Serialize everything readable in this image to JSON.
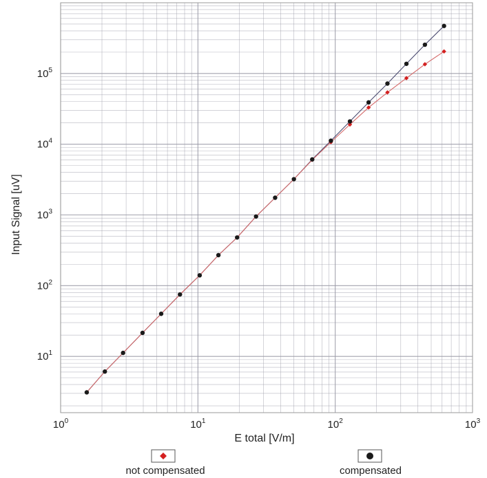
{
  "chart_data": {
    "type": "scatter",
    "xlabel": "E total [V/m]",
    "ylabel": "Input Signal [uV]",
    "xscale": "log",
    "yscale": "log",
    "xlim": [
      1,
      1000
    ],
    "ylim": [
      1.6,
      1000000
    ],
    "grid": true,
    "legend_position": "bottom",
    "x_ticks": [
      {
        "value": 1,
        "base": "10",
        "exp": "0"
      },
      {
        "value": 10,
        "base": "10",
        "exp": "1"
      },
      {
        "value": 100,
        "base": "10",
        "exp": "2"
      },
      {
        "value": 1000,
        "base": "10",
        "exp": "3"
      }
    ],
    "y_ticks": [
      {
        "value": 10,
        "base": "10",
        "exp": "1"
      },
      {
        "value": 100,
        "base": "10",
        "exp": "2"
      },
      {
        "value": 1000,
        "base": "10",
        "exp": "3"
      },
      {
        "value": 10000,
        "base": "10",
        "exp": "4"
      },
      {
        "value": 100000,
        "base": "10",
        "exp": "5"
      }
    ],
    "series": [
      {
        "name": "not compensated",
        "marker": "diamond",
        "color": "#d42020",
        "x": [
          1.55,
          2.1,
          2.85,
          3.95,
          5.4,
          7.4,
          10.3,
          14.1,
          19.3,
          26.5,
          36.5,
          50,
          68,
          93,
          128,
          175,
          240,
          330,
          450,
          620
        ],
        "y": [
          3.1,
          6.1,
          11.2,
          21.5,
          40,
          75,
          140,
          270,
          480,
          950,
          1750,
          3200,
          6000,
          10700,
          19000,
          33000,
          54000,
          86000,
          135000,
          205000
        ]
      },
      {
        "name": "compensated",
        "marker": "circle",
        "color": "#1a1a1a",
        "x": [
          1.55,
          2.1,
          2.85,
          3.95,
          5.4,
          7.4,
          10.3,
          14.1,
          19.3,
          26.5,
          36.5,
          50,
          68,
          93,
          128,
          175,
          240,
          330,
          450,
          620
        ],
        "y": [
          3.1,
          6.1,
          11.2,
          21.5,
          40,
          75,
          140,
          270,
          480,
          950,
          1750,
          3200,
          6100,
          11200,
          21000,
          39000,
          72000,
          137000,
          255000,
          470000
        ]
      }
    ]
  },
  "colors": {
    "grid": "#9a9aa6",
    "axis": "#9a9a9a",
    "line_compensated": "#4a4a70",
    "line_not_compensated": "#d46a6a"
  }
}
